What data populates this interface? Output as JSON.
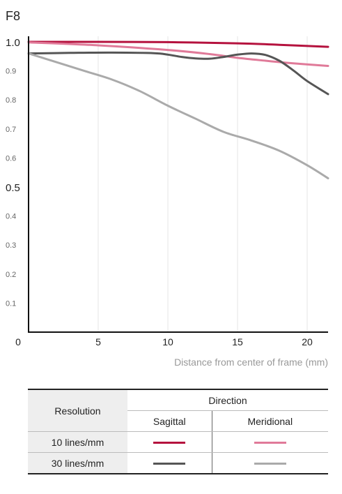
{
  "chart_data": {
    "type": "line",
    "title": "F8",
    "xlabel": "Distance from center of frame (mm)",
    "ylabel": "",
    "xlim": [
      0,
      21.5
    ],
    "ylim": [
      0,
      1.0
    ],
    "xticks": [
      0,
      5,
      10,
      15,
      20
    ],
    "xtick_labels": [
      "0",
      "5",
      "10",
      "15",
      "20"
    ],
    "yticks": [
      0.1,
      0.2,
      0.3,
      0.4,
      0.5,
      0.6,
      0.7,
      0.8,
      0.9,
      1.0
    ],
    "ytick_labels": [
      "0.1",
      "0.2",
      "0.3",
      "0.4",
      "0.5",
      "0.6",
      "0.7",
      "0.8",
      "0.9",
      "1.0"
    ],
    "grid": "vertical",
    "series": [
      {
        "key": "s10",
        "color": "#b5123e",
        "points": [
          [
            0,
            1.0
          ],
          [
            5,
            1.0
          ],
          [
            10,
            0.999
          ],
          [
            15,
            0.995
          ],
          [
            18,
            0.99
          ],
          [
            21.5,
            0.983
          ]
        ]
      },
      {
        "key": "m10",
        "color": "#e07a99",
        "points": [
          [
            0,
            0.998
          ],
          [
            5,
            0.988
          ],
          [
            10,
            0.972
          ],
          [
            13,
            0.958
          ],
          [
            15,
            0.945
          ],
          [
            17,
            0.935
          ],
          [
            19,
            0.926
          ],
          [
            21.5,
            0.917
          ]
        ]
      },
      {
        "key": "s30",
        "color": "#555555",
        "points": [
          [
            0,
            0.96
          ],
          [
            3,
            0.962
          ],
          [
            6,
            0.963
          ],
          [
            9,
            0.961
          ],
          [
            10,
            0.956
          ],
          [
            11,
            0.948
          ],
          [
            12,
            0.943
          ],
          [
            13,
            0.942
          ],
          [
            14,
            0.948
          ],
          [
            15,
            0.956
          ],
          [
            16,
            0.96
          ],
          [
            17,
            0.955
          ],
          [
            18,
            0.935
          ],
          [
            19,
            0.902
          ],
          [
            20,
            0.865
          ],
          [
            21.5,
            0.82
          ]
        ]
      },
      {
        "key": "m30",
        "color": "#aaaaaa",
        "points": [
          [
            0,
            0.96
          ],
          [
            2,
            0.93
          ],
          [
            4,
            0.9
          ],
          [
            6,
            0.87
          ],
          [
            8,
            0.83
          ],
          [
            10,
            0.78
          ],
          [
            12,
            0.735
          ],
          [
            14,
            0.69
          ],
          [
            16,
            0.66
          ],
          [
            18,
            0.625
          ],
          [
            20,
            0.575
          ],
          [
            21.5,
            0.53
          ]
        ]
      }
    ]
  },
  "legend": {
    "resolution_header": "Resolution",
    "direction_header": "Direction",
    "sagittal": "Sagittal",
    "meridional": "Meridional",
    "rows": [
      {
        "label": "10 lines/mm",
        "sagittal_color": "#b5123e",
        "meridional_color": "#e07a99"
      },
      {
        "label": "30 lines/mm",
        "sagittal_color": "#555555",
        "meridional_color": "#aaaaaa"
      }
    ]
  }
}
